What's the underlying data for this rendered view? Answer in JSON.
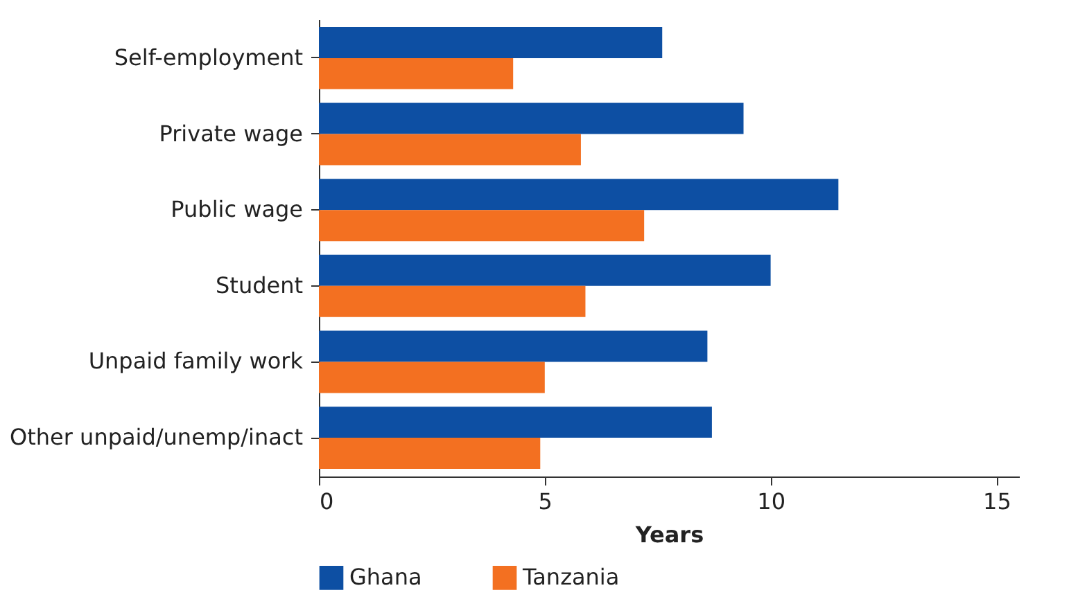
{
  "chart_data": {
    "type": "bar",
    "orientation": "horizontal",
    "xlabel": "Years",
    "categories": [
      "Self-employment",
      "Private wage",
      "Public wage",
      "Student",
      "Unpaid family work",
      "Other unpaid/unemp/inact"
    ],
    "series": [
      {
        "name": "Ghana",
        "color": "#0d4fa3",
        "values": [
          7.6,
          9.4,
          11.5,
          10.0,
          8.6,
          8.7
        ]
      },
      {
        "name": "Tanzania",
        "color": "#f37021",
        "values": [
          4.3,
          5.8,
          7.2,
          5.9,
          5.0,
          4.9
        ]
      }
    ],
    "xlim": [
      0,
      15.5
    ],
    "xticks": [
      0,
      5,
      10,
      15
    ],
    "grid": false,
    "legend": "bottom"
  }
}
